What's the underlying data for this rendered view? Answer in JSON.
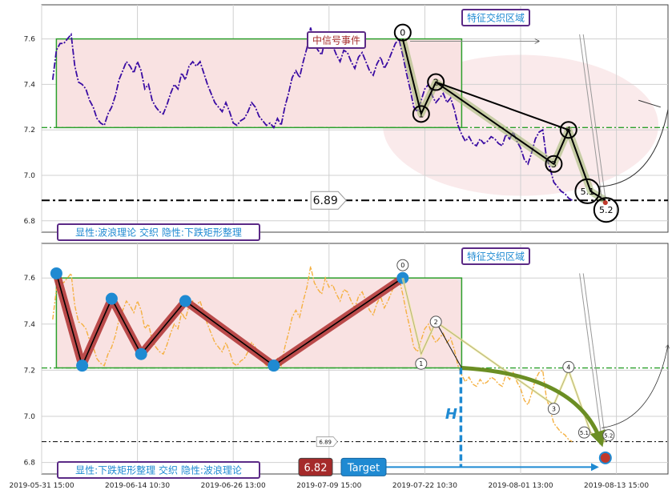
{
  "chart_data": [
    {
      "type": "line",
      "panel": "top",
      "ylim": [
        6.75,
        7.75
      ],
      "yticks": [
        "7.6",
        "7.4",
        "7.2",
        "7.0",
        "6.8"
      ],
      "support_level": 7.21,
      "target_level": 6.89,
      "target_label": "6.89",
      "rectangle": {
        "x_start": 4,
        "x_end": 114,
        "y_low": 7.21,
        "y_high": 7.6
      },
      "wave_points": [
        {
          "label": "0",
          "x": 98,
          "y": 7.6
        },
        {
          "label": "1",
          "x": 103,
          "y": 7.27
        },
        {
          "label": "2",
          "x": 107,
          "y": 7.41
        },
        {
          "label": "3",
          "x": 139,
          "y": 7.05
        },
        {
          "label": "4",
          "x": 143,
          "y": 7.2
        },
        {
          "label": "5.1",
          "x": 149,
          "y": 6.93
        },
        {
          "label": "5.2",
          "x": 153,
          "y": 6.89
        }
      ],
      "annotations": {
        "signal": "中信号事件",
        "zone": "特征交织区域",
        "pattern": "显性:波浪理论 交织 隐性:下跌矩形整理"
      },
      "colors": {
        "price": "#3a0ca3",
        "rect_edge": "#2ca02c",
        "rect_fill": "#f9e2e2",
        "support": "#2ca02c"
      }
    },
    {
      "type": "line",
      "panel": "bottom",
      "ylim": [
        6.75,
        7.75
      ],
      "yticks": [
        "7.6",
        "7.4",
        "7.2",
        "7.0",
        "6.8"
      ],
      "support_level": 7.21,
      "target_level": 6.89,
      "target_label": "6.89",
      "target_price": "6.82",
      "target_text": "Target",
      "h_label": "H",
      "rectangle": {
        "x_start": 4,
        "x_end": 114,
        "y_low": 7.21,
        "y_high": 7.6
      },
      "zigzag_points": [
        {
          "x": 4,
          "y": 7.62
        },
        {
          "x": 11,
          "y": 7.22
        },
        {
          "x": 19,
          "y": 7.51
        },
        {
          "x": 27,
          "y": 7.27
        },
        {
          "x": 39,
          "y": 7.5
        },
        {
          "x": 63,
          "y": 7.22
        },
        {
          "x": 98,
          "y": 7.6
        }
      ],
      "wave_points": [
        {
          "label": "0",
          "x": 98,
          "y": 7.6
        },
        {
          "label": "1",
          "x": 103,
          "y": 7.27
        },
        {
          "label": "2",
          "x": 107,
          "y": 7.41
        },
        {
          "label": "3",
          "x": 139,
          "y": 7.05
        },
        {
          "label": "4",
          "x": 143,
          "y": 7.2
        },
        {
          "label": "5.1",
          "x": 149,
          "y": 6.93
        },
        {
          "label": "5.2",
          "x": 153,
          "y": 6.89
        }
      ],
      "target_point": {
        "x": 153,
        "y": 6.82
      },
      "annotations": {
        "zone": "特征交织区域",
        "pattern": "显性:下跌矩形整理 交织 隐性:波浪理论"
      },
      "colors": {
        "price": "#f5b041",
        "zigzag": "#b23a3a",
        "node": "#1f8ad2",
        "target": "#1f8ad2",
        "target_price_bg": "#a52a2a"
      }
    }
  ],
  "x_axis": {
    "range": [
      0,
      170
    ],
    "ticks": [
      {
        "x": 0,
        "label": "2019-05-31 15:00"
      },
      {
        "x": 26,
        "label": "2019-06-14 10:30"
      },
      {
        "x": 52,
        "label": "2019-06-26 13:00"
      },
      {
        "x": 78,
        "label": "2019-07-09 15:00"
      },
      {
        "x": 104,
        "label": "2019-07-22 10:30"
      },
      {
        "x": 130,
        "label": "2019-08-01 13:00"
      },
      {
        "x": 156,
        "label": "2019-08-13 15:00"
      }
    ]
  },
  "price_series": {
    "x_start": 3,
    "x_step": 1,
    "values": [
      7.42,
      7.55,
      7.58,
      7.58,
      7.6,
      7.62,
      7.48,
      7.41,
      7.4,
      7.38,
      7.33,
      7.3,
      7.25,
      7.23,
      7.22,
      7.27,
      7.3,
      7.35,
      7.42,
      7.46,
      7.5,
      7.48,
      7.45,
      7.5,
      7.46,
      7.38,
      7.4,
      7.33,
      7.3,
      7.28,
      7.27,
      7.31,
      7.36,
      7.4,
      7.38,
      7.45,
      7.42,
      7.48,
      7.5,
      7.48,
      7.5,
      7.45,
      7.4,
      7.36,
      7.32,
      7.3,
      7.28,
      7.32,
      7.28,
      7.23,
      7.22,
      7.24,
      7.25,
      7.28,
      7.32,
      7.3,
      7.26,
      7.24,
      7.22,
      7.23,
      7.21,
      7.25,
      7.22,
      7.3,
      7.36,
      7.43,
      7.46,
      7.43,
      7.5,
      7.56,
      7.65,
      7.58,
      7.55,
      7.53,
      7.6,
      7.56,
      7.57,
      7.53,
      7.5,
      7.55,
      7.54,
      7.5,
      7.47,
      7.52,
      7.54,
      7.5,
      7.46,
      7.44,
      7.49,
      7.52,
      7.47,
      7.5,
      7.54,
      7.58,
      7.6,
      7.53,
      7.45,
      7.38,
      7.3,
      7.28,
      7.33,
      7.38,
      7.4,
      7.35,
      7.32,
      7.34,
      7.36,
      7.32,
      7.34,
      7.29,
      7.22,
      7.18,
      7.15,
      7.17,
      7.14,
      7.13,
      7.16,
      7.14,
      7.15,
      7.17,
      7.16,
      7.14,
      7.13,
      7.18,
      7.16,
      7.19,
      7.15,
      7.12,
      7.07,
      7.05,
      7.1,
      7.16,
      7.19,
      7.2,
      7.08,
      7.03,
      6.97,
      6.95,
      6.93,
      6.92,
      6.9,
      6.89
    ]
  }
}
